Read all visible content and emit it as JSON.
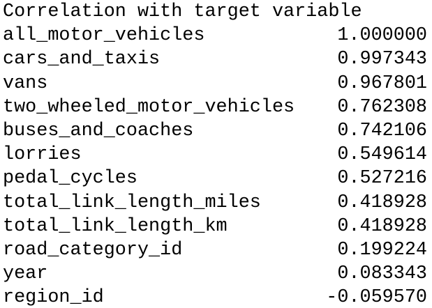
{
  "output": {
    "title": "Correlation with target variable",
    "rows": [
      {
        "name": "all_motor_vehicles",
        "value": "1.000000"
      },
      {
        "name": "cars_and_taxis",
        "value": "0.997343"
      },
      {
        "name": "vans",
        "value": "0.967801"
      },
      {
        "name": "two_wheeled_motor_vehicles",
        "value": "0.762308"
      },
      {
        "name": "buses_and_coaches",
        "value": "0.742106"
      },
      {
        "name": "lorries",
        "value": "0.549614"
      },
      {
        "name": "pedal_cycles",
        "value": "0.527216"
      },
      {
        "name": "total_link_length_miles",
        "value": "0.418928"
      },
      {
        "name": "total_link_length_km",
        "value": "0.418928"
      },
      {
        "name": "road_category_id",
        "value": "0.199224"
      },
      {
        "name": "year",
        "value": "0.083343"
      },
      {
        "name": "region_id",
        "value": "-0.059570"
      }
    ]
  }
}
